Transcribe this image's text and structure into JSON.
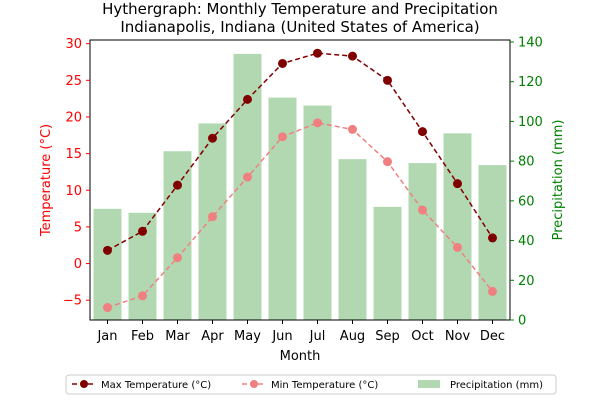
{
  "chart_data": {
    "type": "bar",
    "title": "Hythergraph: Monthly Temperature and Precipitation",
    "subtitle": "Indianapolis, Indiana (United States of America)",
    "xlabel": "Month",
    "ylabel_left": "Temperature (°C)",
    "ylabel_right": "Precipitation (mm)",
    "categories": [
      "Jan",
      "Feb",
      "Mar",
      "Apr",
      "May",
      "Jun",
      "Jul",
      "Aug",
      "Sep",
      "Oct",
      "Nov",
      "Dec"
    ],
    "ylim_left": [
      -7.7,
      30.5
    ],
    "ylim_right": [
      0,
      141
    ],
    "yticks_left": [
      -5,
      0,
      5,
      10,
      15,
      20,
      25,
      30
    ],
    "yticks_right": [
      0,
      20,
      40,
      60,
      80,
      100,
      120,
      140
    ],
    "series": [
      {
        "name": "Max Temperature (°C)",
        "type": "line",
        "axis": "left",
        "color": "#800000",
        "style": "dashed",
        "marker": "circle",
        "values": [
          1.8,
          4.4,
          10.7,
          17.1,
          22.4,
          27.3,
          28.7,
          28.3,
          25.0,
          18.0,
          10.9,
          3.5
        ]
      },
      {
        "name": "Min Temperature (°C)",
        "type": "line",
        "axis": "left",
        "color": "#f08080",
        "style": "dashed",
        "marker": "circle",
        "values": [
          -6.0,
          -4.4,
          0.8,
          6.4,
          11.8,
          17.3,
          19.2,
          18.3,
          13.9,
          7.3,
          2.2,
          -3.8
        ]
      },
      {
        "name": "Precipitation (mm)",
        "type": "bar",
        "axis": "right",
        "color": "#b2d8b2",
        "values": [
          56,
          54,
          85,
          99,
          134,
          112,
          108,
          81,
          57,
          79,
          94,
          78
        ]
      }
    ],
    "grid": false,
    "legend_position": "bottom",
    "colors": {
      "left_axis": "#ff0000",
      "right_axis": "#008000",
      "text": "#000000"
    }
  }
}
